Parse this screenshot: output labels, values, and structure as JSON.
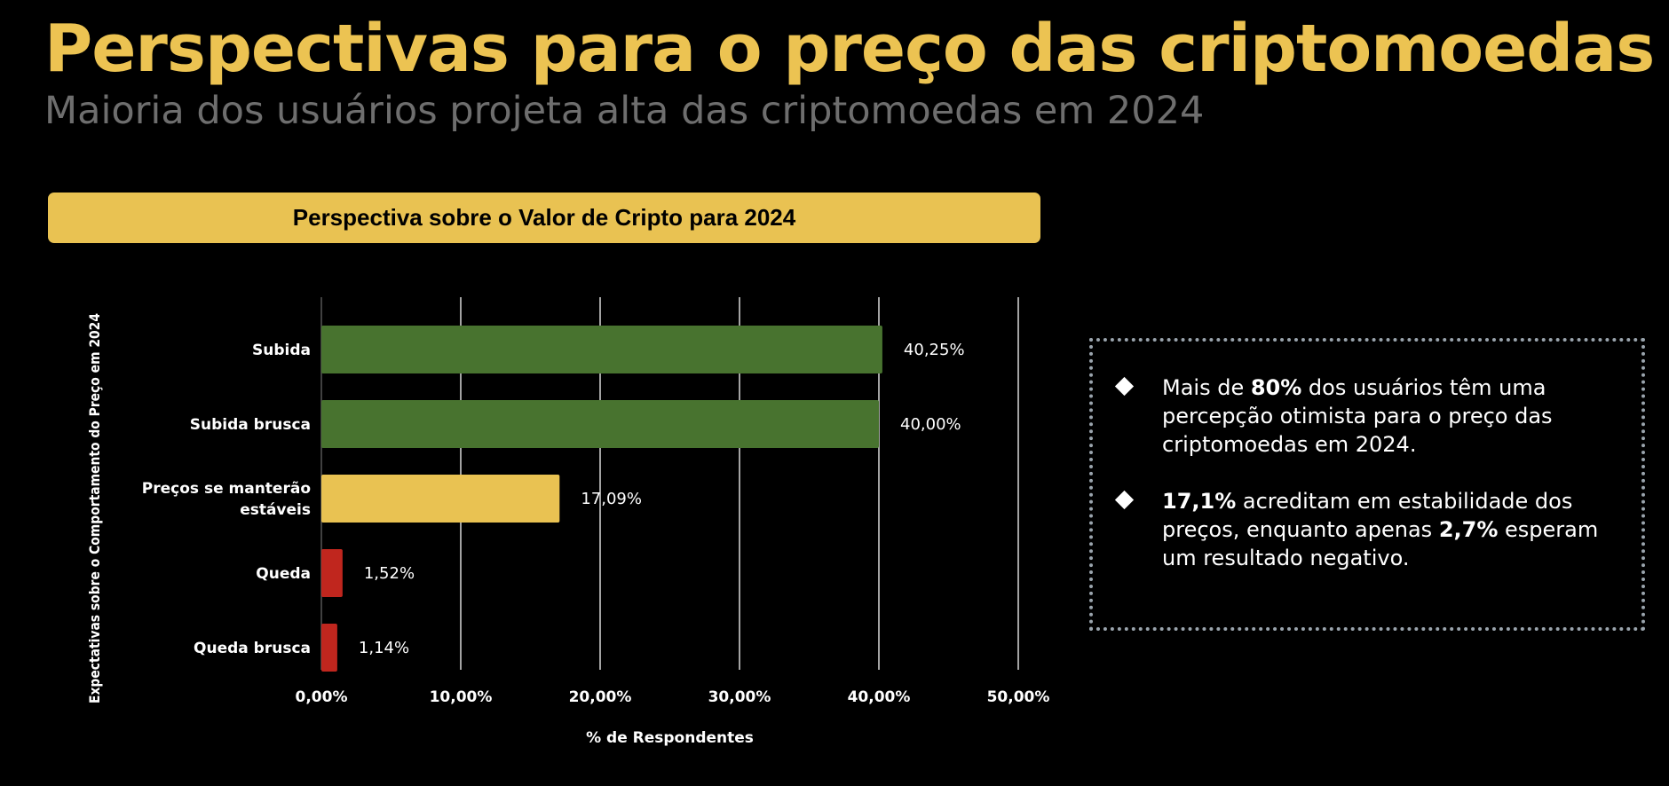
{
  "header": {
    "title": "Perspectivas para o preço das criptomoedas",
    "subtitle": "Maioria dos usuários projeta alta das criptomoedas em 2024"
  },
  "chart_data": {
    "type": "bar",
    "orientation": "horizontal",
    "title": "Perspectiva sobre o Valor de Cripto para 2024",
    "xlabel": "% de Respondentes",
    "ylabel": "Expectativas sobre o Comportamento do Preço em 2024",
    "categories": [
      "Subida",
      "Subida brusca",
      "Preços se manterão estáveis",
      "Queda",
      "Queda brusca"
    ],
    "category_lines": [
      [
        "Subida"
      ],
      [
        "Subida brusca"
      ],
      [
        "Preços se manterão",
        "estáveis"
      ],
      [
        "Queda"
      ],
      [
        "Queda brusca"
      ]
    ],
    "values": [
      40.25,
      40.0,
      17.09,
      1.52,
      1.14
    ],
    "value_labels": [
      "40,25%",
      "40,00%",
      "17,09%",
      "1,52%",
      "1,14%"
    ],
    "colors": [
      "#48732f",
      "#48732f",
      "#e9c252",
      "#c0261e",
      "#c0261e"
    ],
    "xlim": [
      0,
      50
    ],
    "ticks": [
      0,
      10,
      20,
      30,
      40,
      50
    ],
    "tick_labels": [
      "0,00%",
      "10,00%",
      "20,00%",
      "30,00%",
      "40,00%",
      "50,00%"
    ],
    "grid": true,
    "legend": "none"
  },
  "insights": {
    "bullet1": {
      "pre": "Mais de ",
      "bold1": "80%",
      "post": " dos usuários têm uma percepção otimista para o preço das criptomoedas em 2024."
    },
    "bullet2": {
      "bold1": "17,1%",
      "mid": " acreditam em estabilidade dos preços, enquanto apenas ",
      "bold2": "2,7%",
      "post": " esperam um resultado negativo."
    }
  },
  "colors": {
    "accent": "#ecc352",
    "header_bar": "#e9c252",
    "subtitle": "#6e6e6e",
    "positive": "#48732f",
    "neutral": "#e9c252",
    "negative": "#c0261e"
  }
}
